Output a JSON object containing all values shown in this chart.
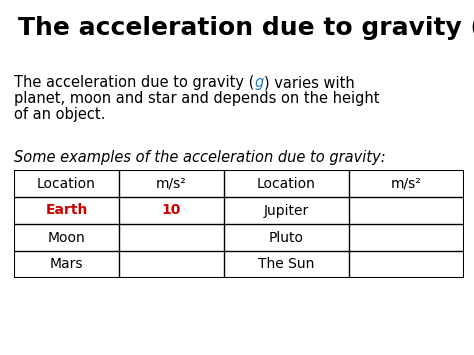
{
  "title_color_normal": "#000000",
  "title_color_g": "#1e7abf",
  "earth_color": "#cc0000",
  "ten_color": "#cc0000",
  "bg_color": "#ffffff",
  "text_color": "#000000",
  "body_text_line2": "planet, moon and star and depends on the height",
  "body_text_line3": "of an object.",
  "italic_text": "Some examples of the acceleration due to gravity:",
  "table_header": [
    "Location",
    "m/s²",
    "Location",
    "m/s²"
  ],
  "table_rows": [
    [
      "Earth",
      "10",
      "Jupiter",
      ""
    ],
    [
      "Moon",
      "",
      "Pluto",
      ""
    ],
    [
      "Mars",
      "",
      "The Sun",
      ""
    ]
  ],
  "title_fontsize": 18,
  "body_fontsize": 10.5,
  "italic_fontsize": 10.5,
  "table_fontsize": 10,
  "fig_width": 4.74,
  "fig_height": 3.55,
  "dpi": 100
}
